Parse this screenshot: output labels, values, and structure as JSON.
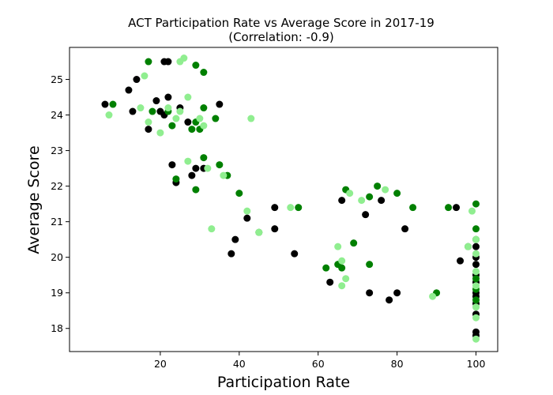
{
  "chart_data": {
    "type": "scatter",
    "title": "ACT Participation Rate vs Average Score in 2017-19",
    "subtitle": "(Correlation: -0.9)",
    "xlabel": "Participation Rate",
    "ylabel": "Average Score",
    "xlim": [
      -3,
      105.5
    ],
    "ylim": [
      17.35,
      25.9
    ],
    "xticks": [
      20,
      40,
      60,
      80,
      100
    ],
    "yticks": [
      18,
      19,
      20,
      21,
      22,
      23,
      24,
      25
    ],
    "grid": false,
    "legend": "none",
    "series": [
      {
        "color": "#000000",
        "points": [
          [
            6,
            24.3
          ],
          [
            12,
            24.7
          ],
          [
            13,
            24.1
          ],
          [
            14,
            25.0
          ],
          [
            17,
            23.6
          ],
          [
            19,
            24.4
          ],
          [
            20,
            24.1
          ],
          [
            21,
            25.5
          ],
          [
            21,
            24.0
          ],
          [
            22,
            24.5
          ],
          [
            22,
            25.5
          ],
          [
            23,
            22.6
          ],
          [
            24,
            22.1
          ],
          [
            25,
            24.2
          ],
          [
            27,
            23.8
          ],
          [
            28,
            22.3
          ],
          [
            29,
            22.5
          ],
          [
            31,
            22.5
          ],
          [
            35,
            24.3
          ],
          [
            38,
            20.1
          ],
          [
            39,
            20.5
          ],
          [
            42,
            21.1
          ],
          [
            49,
            21.4
          ],
          [
            49,
            20.8
          ],
          [
            54,
            20.1
          ],
          [
            63,
            19.3
          ],
          [
            66,
            21.6
          ],
          [
            72,
            21.2
          ],
          [
            73,
            19.0
          ],
          [
            76,
            21.6
          ],
          [
            78,
            18.8
          ],
          [
            80,
            19.0
          ],
          [
            82,
            20.8
          ],
          [
            95,
            21.4
          ],
          [
            96,
            19.9
          ],
          [
            100,
            20.3
          ],
          [
            100,
            20.0
          ],
          [
            100,
            19.8
          ],
          [
            100,
            19.5
          ],
          [
            100,
            19.3
          ],
          [
            100,
            19.0
          ],
          [
            100,
            18.9
          ],
          [
            100,
            18.7
          ],
          [
            100,
            18.4
          ],
          [
            100,
            17.9
          ],
          [
            100,
            17.8
          ]
        ]
      },
      {
        "color": "#008000",
        "points": [
          [
            8,
            24.3
          ],
          [
            17,
            25.5
          ],
          [
            18,
            24.1
          ],
          [
            22,
            24.1
          ],
          [
            23,
            23.7
          ],
          [
            24,
            22.2
          ],
          [
            28,
            23.6
          ],
          [
            29,
            23.8
          ],
          [
            29,
            25.4
          ],
          [
            29,
            21.9
          ],
          [
            30,
            23.6
          ],
          [
            31,
            25.2
          ],
          [
            31,
            24.2
          ],
          [
            31,
            22.8
          ],
          [
            34,
            23.9
          ],
          [
            35,
            22.6
          ],
          [
            37,
            22.3
          ],
          [
            40,
            21.8
          ],
          [
            45,
            20.7
          ],
          [
            55,
            21.4
          ],
          [
            62,
            19.7
          ],
          [
            65,
            19.8
          ],
          [
            66,
            19.7
          ],
          [
            67,
            21.9
          ],
          [
            69,
            20.4
          ],
          [
            73,
            21.7
          ],
          [
            73,
            19.8
          ],
          [
            75,
            22.0
          ],
          [
            80,
            21.8
          ],
          [
            84,
            21.4
          ],
          [
            90,
            19.0
          ],
          [
            93,
            21.4
          ],
          [
            98,
            20.3
          ],
          [
            100,
            21.5
          ],
          [
            100,
            20.8
          ],
          [
            100,
            20.5
          ],
          [
            100,
            19.4
          ],
          [
            100,
            19.1
          ],
          [
            100,
            18.8
          ]
        ]
      },
      {
        "color": "#90EE90",
        "points": [
          [
            7,
            24.0
          ],
          [
            15,
            24.2
          ],
          [
            16,
            25.1
          ],
          [
            17,
            23.8
          ],
          [
            20,
            23.5
          ],
          [
            22,
            24.2
          ],
          [
            24,
            23.9
          ],
          [
            25,
            24.1
          ],
          [
            25,
            25.5
          ],
          [
            26,
            25.6
          ],
          [
            27,
            24.5
          ],
          [
            27,
            22.7
          ],
          [
            30,
            23.9
          ],
          [
            31,
            23.7
          ],
          [
            32,
            22.5
          ],
          [
            33,
            20.8
          ],
          [
            36,
            22.3
          ],
          [
            42,
            21.3
          ],
          [
            43,
            23.9
          ],
          [
            45,
            20.7
          ],
          [
            53,
            21.4
          ],
          [
            65,
            20.3
          ],
          [
            66,
            19.9
          ],
          [
            66,
            19.2
          ],
          [
            67,
            19.4
          ],
          [
            68,
            21.8
          ],
          [
            71,
            21.6
          ],
          [
            77,
            21.9
          ],
          [
            89,
            18.9
          ],
          [
            98,
            20.3
          ],
          [
            99,
            21.3
          ],
          [
            100,
            20.5
          ],
          [
            100,
            20.1
          ],
          [
            100,
            19.6
          ],
          [
            100,
            19.2
          ],
          [
            100,
            18.6
          ],
          [
            100,
            18.3
          ],
          [
            100,
            17.7
          ]
        ]
      }
    ]
  }
}
